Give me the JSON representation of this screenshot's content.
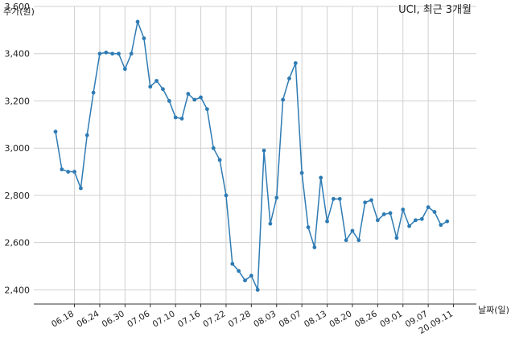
{
  "chart_data": {
    "type": "line",
    "title": "UCI, 최근 3개월",
    "xlabel": "날짜(일)",
    "ylabel": "주가(원)",
    "ylim": [
      2340,
      3600
    ],
    "yticks": [
      2400,
      2600,
      2800,
      3000,
      3200,
      3400,
      3600
    ],
    "ytick_labels": [
      "2,400",
      "2,600",
      "2,800",
      "3,000",
      "3,200",
      "3,400",
      "3,600"
    ],
    "grid": true,
    "line_color": "#2e7bb4",
    "x_tick_labels": [
      "06.18",
      "06.24",
      "06.30",
      "07.06",
      "07.10",
      "07.16",
      "07.22",
      "07.28",
      "08.03",
      "08.07",
      "08.13",
      "08.20",
      "08.26",
      "09.01",
      "09.07",
      "20.09.11"
    ],
    "x_tick_indices": [
      3,
      7,
      11,
      15,
      19,
      23,
      27,
      31,
      35,
      39,
      43,
      47,
      51,
      55,
      59,
      63
    ],
    "values": [
      3070,
      2910,
      2900,
      2900,
      2830,
      3055,
      3235,
      3400,
      3405,
      3400,
      3400,
      3335,
      3400,
      3535,
      3465,
      3260,
      3285,
      3250,
      3200,
      3130,
      3125,
      3230,
      3205,
      3215,
      3165,
      3000,
      2950,
      2800,
      2510,
      2480,
      2440,
      2460,
      2400,
      2990,
      2680,
      2790,
      3205,
      3295,
      3360,
      2895,
      2665,
      2580,
      2875,
      2690,
      2785,
      2785,
      2610,
      2650,
      2610,
      2770,
      2780,
      2695,
      2720,
      2725,
      2620,
      2740,
      2670,
      2695,
      2700,
      2750,
      2730,
      2675,
      2690
    ]
  }
}
